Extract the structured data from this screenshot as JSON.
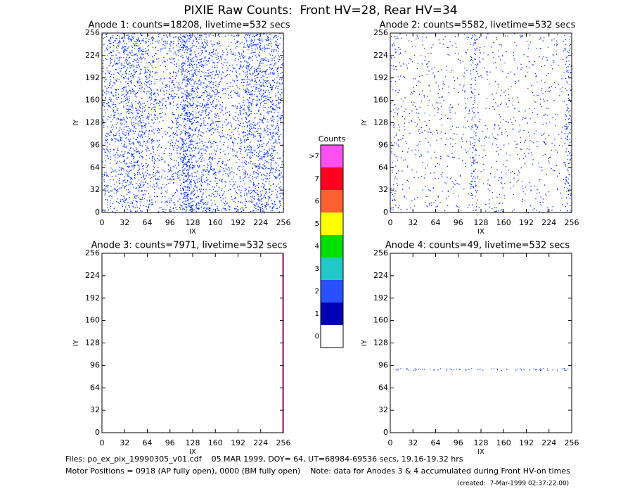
{
  "title": "PIXIE Raw Counts:  Front HV=28, Rear HV=34",
  "chart_data": [
    {
      "type": "heatmap",
      "title": "Anode 1: counts=18208, livetime=532 secs",
      "xlabel": "IX",
      "ylabel": "IY",
      "xlim": [
        0,
        256
      ],
      "ylim": [
        0,
        256
      ],
      "xticks": [
        0,
        32,
        64,
        96,
        128,
        160,
        192,
        224,
        256
      ],
      "yticks": [
        0,
        32,
        64,
        96,
        128,
        160,
        192,
        224,
        256
      ]
    },
    {
      "type": "heatmap",
      "title": "Anode 2: counts=5582, livetime=532 secs",
      "xlabel": "IX",
      "ylabel": "IY",
      "xlim": [
        0,
        256
      ],
      "ylim": [
        0,
        256
      ],
      "xticks": [
        0,
        32,
        64,
        96,
        128,
        160,
        192,
        224,
        256
      ],
      "yticks": [
        0,
        32,
        64,
        96,
        128,
        160,
        192,
        224,
        256
      ]
    },
    {
      "type": "heatmap",
      "title": "Anode 3: counts=7971, livetime=532 secs",
      "xlabel": "IX",
      "ylabel": "IY",
      "xlim": [
        0,
        256
      ],
      "ylim": [
        0,
        256
      ],
      "xticks": [
        0,
        32,
        64,
        96,
        128,
        160,
        192,
        224,
        256
      ],
      "yticks": [
        0,
        32,
        64,
        96,
        128,
        160,
        192,
        224,
        256
      ]
    },
    {
      "type": "heatmap",
      "title": "Anode 4: counts=49, livetime=532 secs",
      "xlabel": "IX",
      "ylabel": "IY",
      "xlim": [
        0,
        256
      ],
      "ylim": [
        0,
        256
      ],
      "xticks": [
        0,
        32,
        64,
        96,
        128,
        160,
        192,
        224,
        256
      ],
      "yticks": [
        0,
        32,
        64,
        96,
        128,
        160,
        192,
        224,
        256
      ]
    }
  ],
  "colorbar": {
    "title": "Counts",
    "categories": [
      "0",
      "1",
      "2",
      "3",
      "4",
      "5",
      "6",
      "7",
      ">7"
    ],
    "colors": [
      "#ffffff",
      "#0000b4",
      "#2850ff",
      "#20c8c8",
      "#00e000",
      "#ffff00",
      "#ff6030",
      "#ff0020",
      "#ff50f0"
    ]
  },
  "notes": [
    "Files: po_ex_pix_19990305_v01.cdf    05 MAR 1999, DOY= 64, UT=68984-69536 secs, 19.16-19.32 hrs",
    "Motor Positions = 0918 (AP fully open), 0000 (BM fully open)    Note: data for Anodes 3 & 4 accumulated during Front HV-on times",
    "(created:  7-Mar-1999 02:37:22.00)"
  ]
}
